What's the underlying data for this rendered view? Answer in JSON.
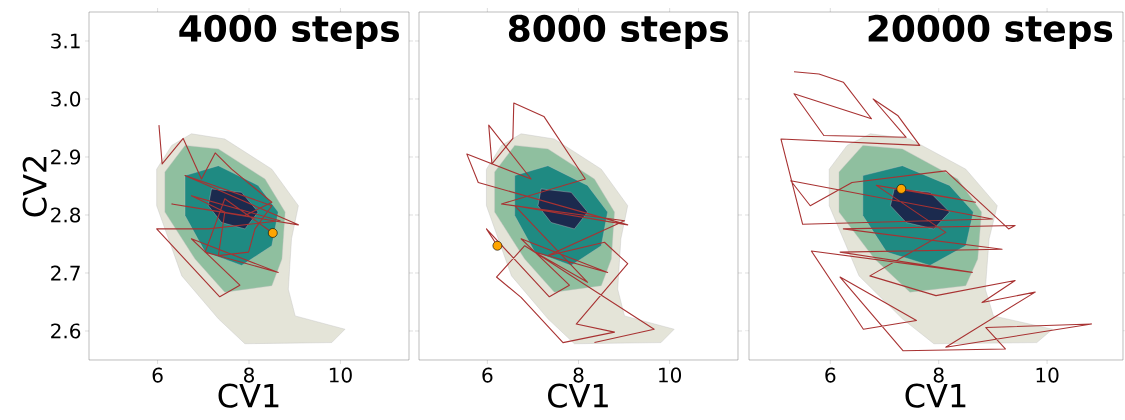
{
  "chart_data": [
    {
      "type": "line",
      "title": "4000 steps",
      "xlabel": "CV1",
      "ylabel": "CV2",
      "xlim": [
        4.5,
        11.5
      ],
      "ylim": [
        2.55,
        3.15
      ],
      "xticks": [
        6,
        8,
        10
      ],
      "yticks": [
        2.6,
        2.7,
        2.8,
        2.9,
        {
          "value": 3.0,
          "label": "3.0"
        },
        3.1
      ],
      "series": [
        {
          "type": "area",
          "color": "#e4e4d8",
          "x": [
            5.98,
            6.31,
            6.74,
            7.47,
            8.5,
            9.08,
            8.93,
            8.86,
            9.01,
            10.1,
            9.81,
            7.91,
            7.33,
            6.53,
            5.98
          ],
          "values": [
            2.879,
            2.92,
            2.94,
            2.931,
            2.879,
            2.816,
            2.759,
            2.672,
            2.626,
            2.603,
            2.58,
            2.578,
            2.621,
            2.695,
            2.816
          ]
        },
        {
          "type": "area",
          "color": "#8fbf9f",
          "x": [
            6.16,
            6.6,
            7.33,
            8.35,
            8.79,
            8.72,
            8.5,
            7.47,
            6.82,
            6.16
          ],
          "values": [
            2.874,
            2.92,
            2.914,
            2.862,
            2.805,
            2.724,
            2.678,
            2.667,
            2.724,
            2.805
          ]
        },
        {
          "type": "area",
          "color": "#1f8a82",
          "x": [
            6.6,
            7.33,
            8.2,
            8.64,
            8.5,
            7.84,
            7.04,
            6.6
          ],
          "values": [
            2.868,
            2.885,
            2.851,
            2.805,
            2.747,
            2.713,
            2.736,
            2.799
          ]
        },
        {
          "type": "area",
          "color": "#1b2a4e",
          "x": [
            7.18,
            7.84,
            8.2,
            7.91,
            7.4,
            7.11
          ],
          "values": [
            2.845,
            2.839,
            2.805,
            2.776,
            2.787,
            2.816
          ]
        },
        {
          "color": "#a83232",
          "x": [
            6.03,
            6.1,
            6.56,
            6.96,
            7.26,
            7.62,
            8.5,
            7.91,
            6.31,
            9.08,
            6.6,
            8.5,
            8.13,
            7.99,
            7.33,
            7.47,
            6.74,
            8.68,
            7.11,
            5.98,
            7.36,
            7.8,
            6.74,
            8.64,
            7.04,
            7.47,
            8.52
          ],
          "values": [
            2.955,
            2.888,
            2.932,
            2.862,
            2.907,
            2.879,
            2.822,
            2.799,
            2.819,
            2.783,
            2.868,
            2.816,
            2.776,
            2.736,
            2.73,
            2.805,
            2.833,
            2.79,
            2.776,
            2.776,
            2.659,
            2.679,
            2.759,
            2.701,
            2.736,
            2.828,
            2.769
          ]
        },
        {
          "type": "scatter",
          "color": "#ffa500",
          "marker": "circle",
          "x": [
            8.52
          ],
          "values": [
            2.769
          ]
        }
      ]
    },
    {
      "type": "line",
      "title": "8000 steps",
      "xlabel": "CV1",
      "xlim": [
        4.5,
        11.5
      ],
      "ylim": [
        2.55,
        3.15
      ],
      "xticks": [
        6,
        8,
        10
      ],
      "yticks": [
        2.6,
        2.7,
        2.8,
        2.9,
        3.0,
        3.1
      ],
      "tick_labels": "x",
      "series": [
        {
          "type": "area",
          "color": "#e4e4d8",
          "x": [
            5.98,
            6.31,
            6.74,
            7.47,
            8.5,
            9.08,
            8.93,
            8.86,
            9.01,
            10.1,
            9.81,
            7.91,
            7.33,
            6.53,
            5.98
          ],
          "values": [
            2.879,
            2.92,
            2.94,
            2.931,
            2.879,
            2.816,
            2.759,
            2.672,
            2.626,
            2.603,
            2.58,
            2.578,
            2.621,
            2.695,
            2.816
          ]
        },
        {
          "type": "area",
          "color": "#8fbf9f",
          "x": [
            6.16,
            6.6,
            7.33,
            8.35,
            8.79,
            8.72,
            8.5,
            7.47,
            6.82,
            6.16
          ],
          "values": [
            2.874,
            2.92,
            2.914,
            2.862,
            2.805,
            2.724,
            2.678,
            2.667,
            2.724,
            2.805
          ]
        },
        {
          "type": "area",
          "color": "#1f8a82",
          "x": [
            6.6,
            7.33,
            8.2,
            8.64,
            8.5,
            7.84,
            7.04,
            6.6
          ],
          "values": [
            2.868,
            2.885,
            2.851,
            2.805,
            2.747,
            2.713,
            2.736,
            2.799
          ]
        },
        {
          "type": "area",
          "color": "#1b2a4e",
          "x": [
            7.18,
            7.84,
            8.2,
            7.91,
            7.4,
            7.11
          ],
          "values": [
            2.845,
            2.839,
            2.805,
            2.776,
            2.787,
            2.816
          ]
        },
        {
          "color": "#a83232",
          "x": [
            6.22,
            5.98,
            7.36,
            7.8,
            6.74,
            8.64,
            7.04,
            8.2,
            6.6,
            9.08,
            5.8,
            5.55,
            6.96,
            6.03,
            6.1,
            6.56,
            6.58,
            7.24,
            8.15,
            6.31,
            9.01,
            7.33,
            8.57,
            9.08,
            7.95,
            8.79,
            7.66,
            6.74,
            6.2,
            6.82,
            9.66,
            8.35
          ],
          "values": [
            2.747,
            2.776,
            2.659,
            2.679,
            2.759,
            2.701,
            2.736,
            2.684,
            2.816,
            2.783,
            2.856,
            2.905,
            2.862,
            2.955,
            2.888,
            2.932,
            2.993,
            2.97,
            2.862,
            2.819,
            2.79,
            2.73,
            2.753,
            2.716,
            2.612,
            2.598,
            2.58,
            2.658,
            2.693,
            2.747,
            2.603,
            2.58
          ]
        },
        {
          "type": "scatter",
          "color": "#ffa500",
          "marker": "circle",
          "x": [
            6.22
          ],
          "values": [
            2.747
          ]
        }
      ]
    },
    {
      "type": "line",
      "title": "20000 steps",
      "xlabel": "CV1",
      "xlim": [
        4.5,
        11.4
      ],
      "ylim": [
        2.55,
        3.15
      ],
      "xticks": [
        6,
        8,
        10
      ],
      "yticks": [
        2.6,
        2.7,
        2.8,
        2.9,
        3.0,
        3.1
      ],
      "tick_labels": "x",
      "series": [
        {
          "type": "area",
          "color": "#e4e4d8",
          "x": [
            5.98,
            6.31,
            6.74,
            7.47,
            8.5,
            9.08,
            8.93,
            8.86,
            9.01,
            10.1,
            9.81,
            7.91,
            7.33,
            6.53,
            5.98
          ],
          "values": [
            2.879,
            2.92,
            2.94,
            2.931,
            2.879,
            2.816,
            2.759,
            2.672,
            2.626,
            2.603,
            2.58,
            2.578,
            2.621,
            2.695,
            2.816
          ]
        },
        {
          "type": "area",
          "color": "#8fbf9f",
          "x": [
            6.16,
            6.6,
            7.33,
            8.35,
            8.79,
            8.72,
            8.5,
            7.47,
            6.82,
            6.16
          ],
          "values": [
            2.874,
            2.92,
            2.914,
            2.862,
            2.805,
            2.724,
            2.678,
            2.667,
            2.724,
            2.805
          ]
        },
        {
          "type": "area",
          "color": "#1f8a82",
          "x": [
            6.6,
            7.33,
            8.2,
            8.64,
            8.5,
            7.84,
            7.04,
            6.6
          ],
          "values": [
            2.868,
            2.885,
            2.851,
            2.805,
            2.747,
            2.713,
            2.736,
            2.799
          ]
        },
        {
          "type": "area",
          "color": "#1b2a4e",
          "x": [
            7.18,
            7.84,
            8.2,
            7.91,
            7.4,
            7.11
          ],
          "values": [
            2.845,
            2.839,
            2.805,
            2.776,
            2.787,
            2.816
          ]
        },
        {
          "color": "#a83232",
          "x": [
            5.33,
            5.79,
            6.24,
            6.76,
            5.33,
            5.88,
            7.4,
            6.79,
            7.25,
            7.65,
            5.09,
            5.49,
            8.99,
            5.27,
            5.63,
            6.4,
            8.13,
            9.29,
            9.41,
            6.24,
            9.17,
            6.18,
            8.62,
            5.65,
            6.61,
            7.59,
            6.18,
            7.34,
            9.23,
            8.87,
            10.82,
            8.13,
            9.78,
            8.8,
            9.41,
            7.95,
            6.73,
            8.13,
            6.85,
            8.68,
            7.31
          ],
          "values": [
            3.047,
            3.043,
            3.029,
            2.966,
            3.009,
            2.937,
            2.934,
            3.0,
            2.971,
            2.92,
            2.931,
            2.784,
            2.793,
            2.859,
            2.816,
            2.856,
            2.876,
            2.776,
            2.782,
            2.776,
            2.741,
            2.736,
            2.701,
            2.738,
            2.603,
            2.618,
            2.693,
            2.566,
            2.569,
            2.606,
            2.612,
            2.572,
            2.667,
            2.649,
            2.687,
            2.661,
            2.695,
            2.77,
            2.851,
            2.822,
            2.845
          ]
        },
        {
          "type": "scatter",
          "color": "#ffa500",
          "marker": "circle",
          "x": [
            7.31
          ],
          "values": [
            2.845
          ]
        }
      ]
    }
  ]
}
